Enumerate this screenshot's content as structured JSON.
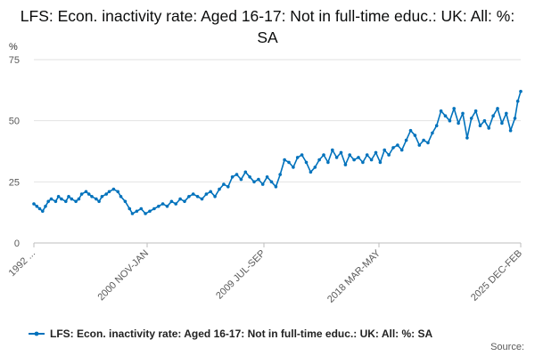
{
  "chart_data": {
    "type": "line",
    "title": "LFS: Econ. inactivity rate: Aged 16-17: Not in full-time educ.: UK: All: %: SA",
    "ylabel": "%",
    "xlabel": "",
    "ylim": [
      0,
      75
    ],
    "yticks": [
      0,
      25,
      50,
      75
    ],
    "xtick_labels": [
      "1992 ...",
      "2000 NOV-JAN",
      "2009 JUL-SEP",
      "2018 MAR-MAY",
      "2025 DEC-FEB"
    ],
    "x_range": [
      1992.3,
      2025.9
    ],
    "grid": true,
    "legend_position": "bottom",
    "source_label": "Source:",
    "series": [
      {
        "name": "LFS: Econ. inactivity rate: Aged 16-17: Not in full-time educ.: UK: All: %: SA",
        "color": "#0072bc",
        "x": [
          1992.3,
          1992.5,
          1992.7,
          1992.9,
          1993.1,
          1993.3,
          1993.5,
          1993.8,
          1994.0,
          1994.2,
          1994.5,
          1994.7,
          1994.9,
          1995.2,
          1995.4,
          1995.6,
          1995.9,
          1996.1,
          1996.3,
          1996.6,
          1996.8,
          1997.0,
          1997.3,
          1997.5,
          1997.8,
          1998.1,
          1998.3,
          1998.6,
          1998.9,
          1999.1,
          1999.4,
          1999.7,
          2000.0,
          2000.3,
          2000.6,
          2000.9,
          2001.2,
          2001.5,
          2001.8,
          2002.1,
          2002.4,
          2002.7,
          2003.0,
          2003.3,
          2003.6,
          2003.9,
          2004.2,
          2004.5,
          2004.8,
          2005.1,
          2005.4,
          2005.7,
          2006.0,
          2006.3,
          2006.6,
          2006.9,
          2007.2,
          2007.5,
          2007.8,
          2008.1,
          2008.4,
          2008.7,
          2009.0,
          2009.3,
          2009.6,
          2009.9,
          2010.2,
          2010.5,
          2010.8,
          2011.1,
          2011.4,
          2011.7,
          2012.0,
          2012.3,
          2012.6,
          2012.9,
          2013.2,
          2013.5,
          2013.8,
          2014.1,
          2014.4,
          2014.7,
          2015.0,
          2015.3,
          2015.6,
          2015.9,
          2016.2,
          2016.5,
          2016.8,
          2017.1,
          2017.4,
          2017.7,
          2018.0,
          2018.3,
          2018.6,
          2018.9,
          2019.2,
          2019.5,
          2019.8,
          2020.1,
          2020.4,
          2020.7,
          2021.0,
          2021.3,
          2021.6,
          2021.9,
          2022.2,
          2022.5,
          2022.8,
          2023.1,
          2023.4,
          2023.7,
          2024.0,
          2024.3,
          2024.6,
          2024.9,
          2025.2,
          2025.5,
          2025.7,
          2025.9
        ],
        "values": [
          16,
          15,
          14,
          13,
          15,
          17,
          18,
          17,
          19,
          18,
          17,
          19,
          18,
          17,
          18,
          20,
          21,
          20,
          19,
          18,
          17,
          19,
          20,
          21,
          22,
          21,
          19,
          17,
          14,
          12,
          13,
          14,
          12,
          13,
          14,
          15,
          16,
          15,
          17,
          16,
          18,
          17,
          19,
          20,
          19,
          18,
          20,
          21,
          19,
          22,
          24,
          23,
          27,
          28,
          26,
          29,
          27,
          25,
          26,
          24,
          27,
          25,
          23,
          28,
          34,
          33,
          31,
          35,
          36,
          33,
          29,
          31,
          34,
          36,
          33,
          38,
          35,
          37,
          32,
          36,
          34,
          35,
          33,
          36,
          34,
          37,
          33,
          38,
          36,
          39,
          40,
          38,
          42,
          46,
          44,
          40,
          42,
          41,
          45,
          48,
          54,
          52,
          50,
          55,
          49,
          53,
          43,
          51,
          54,
          48,
          50,
          47,
          52,
          55,
          49,
          53,
          46,
          51,
          58,
          62
        ]
      }
    ]
  }
}
